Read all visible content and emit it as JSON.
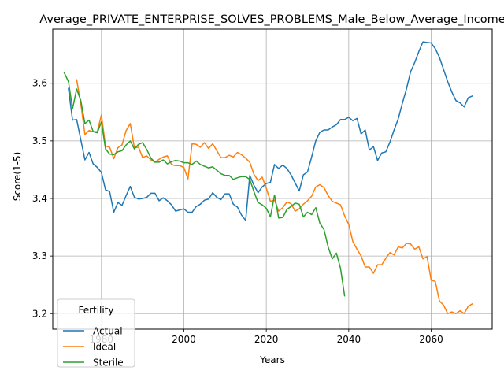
{
  "chart_data": {
    "type": "line",
    "title": "Average_PRIVATE_ENTERPRISE_SOLVES_PROBLEMS_Male_Below_Average_Income",
    "xlabel": "Years",
    "ylabel": "Score(1-5)",
    "xlim": [
      1968.2,
      2074.8
    ],
    "ylim": [
      3.173,
      3.694
    ],
    "x_ticks": [
      1980,
      2000,
      2020,
      2040,
      2060
    ],
    "y_ticks": [
      3.2,
      3.3,
      3.4,
      3.5,
      3.6
    ],
    "x_tick_labels": [
      "1980",
      "2000",
      "2020",
      "2040",
      "2060"
    ],
    "y_tick_labels": [
      "3.2",
      "3.3",
      "3.4",
      "3.5",
      "3.6"
    ],
    "grid": true,
    "legend": {
      "title": "Fertility",
      "placement": "lower-left"
    },
    "series": [
      {
        "name": "Actual",
        "color": "#1f77b4",
        "x": [
          1972,
          1973,
          1974,
          1975,
          1976,
          1977,
          1978,
          1979,
          1980,
          1981,
          1982,
          1983,
          1984,
          1985,
          1986,
          1987,
          1988,
          1989,
          1990,
          1991,
          1992,
          1993,
          1994,
          1995,
          1996,
          1997,
          1998,
          1999,
          2000,
          2001,
          2002,
          2003,
          2004,
          2005,
          2006,
          2007,
          2008,
          2009,
          2010,
          2011,
          2012,
          2013,
          2014,
          2015,
          2016,
          2017,
          2018,
          2019,
          2020,
          2021,
          2022,
          2023,
          2024,
          2025,
          2026,
          2027,
          2028,
          2029,
          2030,
          2031,
          2032,
          2033,
          2034,
          2035,
          2036,
          2037,
          2038,
          2039,
          2040,
          2041,
          2042,
          2043,
          2044,
          2045,
          2046,
          2047,
          2048,
          2049,
          2050,
          2051,
          2052,
          2053,
          2054,
          2055,
          2056,
          2057,
          2058,
          2059,
          2060,
          2061,
          2062,
          2063,
          2064,
          2065,
          2066,
          2067,
          2068,
          2069,
          2070
        ],
        "values": [
          3.591,
          3.536,
          3.537,
          3.502,
          3.467,
          3.48,
          3.46,
          3.454,
          3.445,
          3.415,
          3.412,
          3.376,
          3.393,
          3.388,
          3.405,
          3.421,
          3.402,
          3.399,
          3.4,
          3.402,
          3.409,
          3.409,
          3.396,
          3.401,
          3.396,
          3.389,
          3.378,
          3.38,
          3.382,
          3.376,
          3.376,
          3.386,
          3.39,
          3.397,
          3.399,
          3.41,
          3.402,
          3.398,
          3.408,
          3.408,
          3.39,
          3.385,
          3.371,
          3.362,
          3.44,
          3.423,
          3.41,
          3.42,
          3.426,
          3.428,
          3.459,
          3.452,
          3.458,
          3.452,
          3.441,
          3.427,
          3.413,
          3.441,
          3.446,
          3.472,
          3.5,
          3.515,
          3.519,
          3.519,
          3.524,
          3.528,
          3.537,
          3.537,
          3.541,
          3.535,
          3.539,
          3.512,
          3.519,
          3.484,
          3.49,
          3.466,
          3.479,
          3.481,
          3.498,
          3.519,
          3.538,
          3.565,
          3.59,
          3.62,
          3.636,
          3.655,
          3.672,
          3.671,
          3.67,
          3.66,
          3.645,
          3.624,
          3.603,
          3.585,
          3.57,
          3.566,
          3.559,
          3.575,
          3.578
        ]
      },
      {
        "name": "Ideal",
        "color": "#ff7f0e",
        "x": [
          1974,
          1975,
          1976,
          1977,
          1978,
          1979,
          1980,
          1981,
          1982,
          1983,
          1984,
          1985,
          1986,
          1987,
          1988,
          1989,
          1990,
          1991,
          1992,
          1993,
          1994,
          1995,
          1996,
          1997,
          1998,
          1999,
          2000,
          2001,
          2002,
          2003,
          2004,
          2005,
          2006,
          2007,
          2008,
          2009,
          2010,
          2011,
          2012,
          2013,
          2014,
          2015,
          2016,
          2017,
          2018,
          2019,
          2020,
          2021,
          2022,
          2023,
          2024,
          2025,
          2026,
          2027,
          2028,
          2029,
          2030,
          2031,
          2032,
          2033,
          2034,
          2035,
          2036,
          2037,
          2038,
          2039,
          2040,
          2041,
          2042,
          2043,
          2044,
          2045,
          2046,
          2047,
          2048,
          2049,
          2050,
          2051,
          2052,
          2053,
          2054,
          2055,
          2056,
          2057,
          2058,
          2059,
          2060,
          2061,
          2062,
          2063,
          2064,
          2065,
          2066,
          2067,
          2068,
          2069,
          2070
        ],
        "values": [
          3.606,
          3.565,
          3.511,
          3.518,
          3.516,
          3.516,
          3.545,
          3.491,
          3.489,
          3.469,
          3.488,
          3.493,
          3.518,
          3.53,
          3.488,
          3.489,
          3.471,
          3.474,
          3.467,
          3.463,
          3.468,
          3.472,
          3.474,
          3.459,
          3.457,
          3.457,
          3.454,
          3.434,
          3.495,
          3.494,
          3.489,
          3.497,
          3.487,
          3.495,
          3.483,
          3.471,
          3.471,
          3.475,
          3.472,
          3.48,
          3.476,
          3.47,
          3.463,
          3.442,
          3.431,
          3.437,
          3.418,
          3.395,
          3.397,
          3.378,
          3.384,
          3.394,
          3.391,
          3.378,
          3.382,
          3.39,
          3.396,
          3.404,
          3.42,
          3.424,
          3.419,
          3.405,
          3.395,
          3.392,
          3.389,
          3.37,
          3.355,
          3.325,
          3.312,
          3.3,
          3.281,
          3.281,
          3.27,
          3.285,
          3.285,
          3.296,
          3.306,
          3.302,
          3.316,
          3.314,
          3.322,
          3.321,
          3.312,
          3.316,
          3.295,
          3.299,
          3.258,
          3.256,
          3.222,
          3.215,
          3.2,
          3.203,
          3.2,
          3.205,
          3.2,
          3.213,
          3.217
        ]
      },
      {
        "name": "Sterile",
        "color": "#2ca02c",
        "x": [
          1971,
          1972,
          1973,
          1974,
          1975,
          1976,
          1977,
          1978,
          1979,
          1980,
          1981,
          1982,
          1983,
          1984,
          1985,
          1986,
          1987,
          1988,
          1989,
          1990,
          1991,
          1992,
          1993,
          1994,
          1995,
          1996,
          1997,
          1998,
          1999,
          2000,
          2001,
          2002,
          2003,
          2004,
          2005,
          2006,
          2007,
          2008,
          2009,
          2010,
          2011,
          2012,
          2013,
          2014,
          2015,
          2016,
          2017,
          2018,
          2019,
          2020,
          2021,
          2022,
          2023,
          2024,
          2025,
          2026,
          2027,
          2028,
          2029,
          2030,
          2031,
          2032,
          2033,
          2034,
          2035,
          2036,
          2037,
          2038,
          2039
        ],
        "values": [
          3.618,
          3.603,
          3.556,
          3.59,
          3.57,
          3.53,
          3.536,
          3.516,
          3.514,
          3.533,
          3.486,
          3.477,
          3.476,
          3.481,
          3.483,
          3.493,
          3.5,
          3.486,
          3.494,
          3.497,
          3.485,
          3.47,
          3.463,
          3.463,
          3.467,
          3.46,
          3.464,
          3.466,
          3.465,
          3.462,
          3.462,
          3.459,
          3.465,
          3.459,
          3.456,
          3.453,
          3.455,
          3.449,
          3.443,
          3.44,
          3.44,
          3.433,
          3.436,
          3.438,
          3.438,
          3.433,
          3.412,
          3.393,
          3.389,
          3.383,
          3.368,
          3.406,
          3.366,
          3.367,
          3.381,
          3.386,
          3.392,
          3.39,
          3.368,
          3.376,
          3.372,
          3.384,
          3.357,
          3.346,
          3.316,
          3.295,
          3.305,
          3.279,
          3.231
        ]
      }
    ]
  }
}
